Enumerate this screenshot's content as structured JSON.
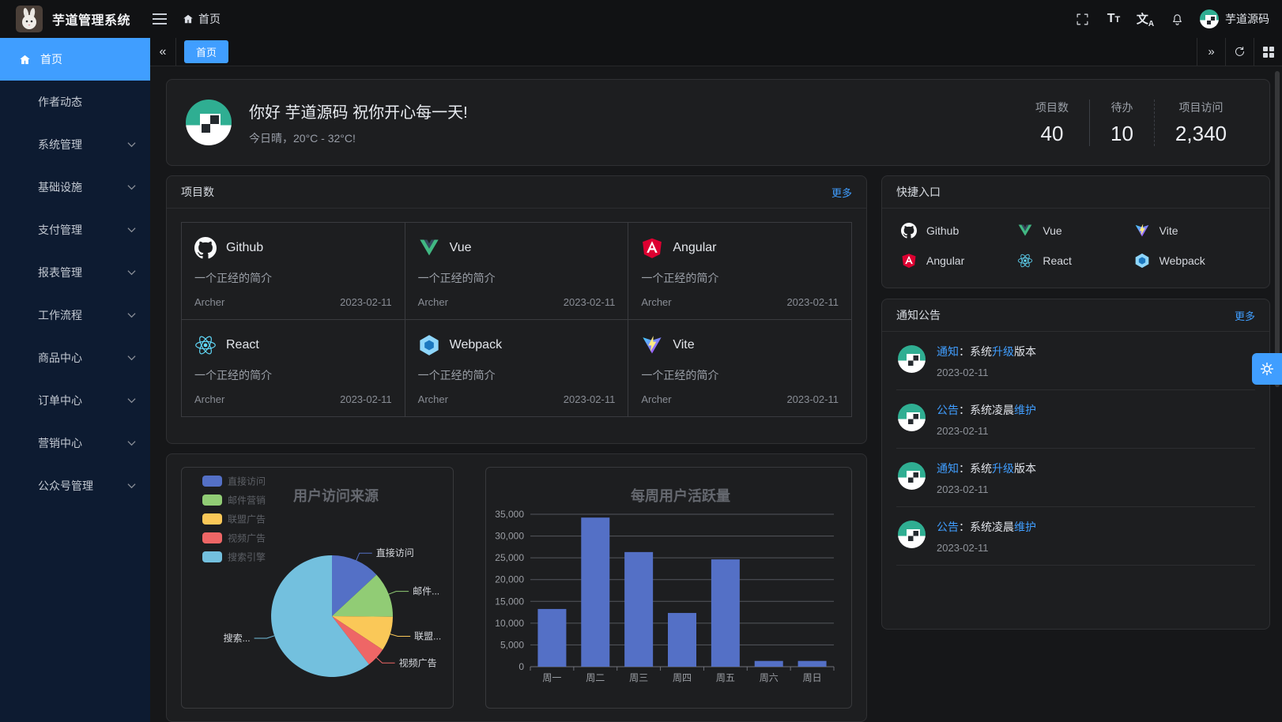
{
  "app": {
    "title": "芋道管理系统"
  },
  "header": {
    "breadcrumb_home": "首页",
    "username": "芋道源码",
    "font_icon_large": "T",
    "font_icon_small": "T",
    "lang_icon_zh": "文",
    "lang_icon_a": "A"
  },
  "tabbar": {
    "collapse_icon": "«",
    "expand_icon": "»",
    "tabs": [
      {
        "label": "首页",
        "active": true
      }
    ]
  },
  "sidebar": {
    "items": [
      {
        "label": "首页",
        "active": true
      },
      {
        "label": "作者动态"
      },
      {
        "label": "系统管理",
        "expandable": true
      },
      {
        "label": "基础设施",
        "expandable": true
      },
      {
        "label": "支付管理",
        "expandable": true
      },
      {
        "label": "报表管理",
        "expandable": true
      },
      {
        "label": "工作流程",
        "expandable": true
      },
      {
        "label": "商品中心",
        "expandable": true
      },
      {
        "label": "订单中心",
        "expandable": true
      },
      {
        "label": "营销中心",
        "expandable": true
      },
      {
        "label": "公众号管理",
        "expandable": true
      }
    ]
  },
  "greeting": {
    "title": "你好 芋道源码 祝你开心每一天!",
    "subtitle": "今日晴，20°C - 32°C!",
    "stats": [
      {
        "label": "项目数",
        "value": "40"
      },
      {
        "label": "待办",
        "value": "10"
      },
      {
        "label": "项目访问",
        "value": "2,340"
      }
    ]
  },
  "projects": {
    "title": "项目数",
    "more": "更多",
    "items": [
      {
        "name": "Github",
        "desc": "一个正经的简介",
        "author": "Archer",
        "date": "2023-02-11"
      },
      {
        "name": "Vue",
        "desc": "一个正经的简介",
        "author": "Archer",
        "date": "2023-02-11"
      },
      {
        "name": "Angular",
        "desc": "一个正经的简介",
        "author": "Archer",
        "date": "2023-02-11"
      },
      {
        "name": "React",
        "desc": "一个正经的简介",
        "author": "Archer",
        "date": "2023-02-11"
      },
      {
        "name": "Webpack",
        "desc": "一个正经的简介",
        "author": "Archer",
        "date": "2023-02-11"
      },
      {
        "name": "Vite",
        "desc": "一个正经的简介",
        "author": "Archer",
        "date": "2023-02-11"
      }
    ]
  },
  "shortcuts": {
    "title": "快捷入口",
    "items": [
      {
        "label": "Github"
      },
      {
        "label": "Vue"
      },
      {
        "label": "Vite"
      },
      {
        "label": "Angular"
      },
      {
        "label": "React"
      },
      {
        "label": "Webpack"
      }
    ]
  },
  "notices": {
    "title": "通知公告",
    "more": "更多",
    "items": [
      {
        "type": "通知",
        "mid": "：系统",
        "hl": "升级",
        "suf": "版本",
        "date": "2023-02-11"
      },
      {
        "type": "公告",
        "mid": "：系统凌晨",
        "hl": "维护",
        "suf": "",
        "date": "2023-02-11"
      },
      {
        "type": "通知",
        "mid": "：系统",
        "hl": "升级",
        "suf": "版本",
        "date": "2023-02-11"
      },
      {
        "type": "公告",
        "mid": "：系统凌晨",
        "hl": "维护",
        "suf": "",
        "date": "2023-02-11"
      }
    ]
  },
  "colors": {
    "primary": "#409eff",
    "sidebar_bg": "#0d1b31",
    "avatar_teal": "#2fae92"
  },
  "chart_data": [
    {
      "type": "pie",
      "title": "用户访问来源",
      "legend": [
        "直接访问",
        "邮件营销",
        "联盟广告",
        "视频广告",
        "搜索引擎"
      ],
      "legend_position": "top-left",
      "series": [
        {
          "name": "直接访问",
          "value": 335
        },
        {
          "name": "邮件营销",
          "value": 310
        },
        {
          "name": "联盟广告",
          "value": 234
        },
        {
          "name": "视频广告",
          "value": 135
        },
        {
          "name": "搜索引擎",
          "value": 1548
        }
      ],
      "display_labels": [
        "直接访问",
        "邮件...",
        "联盟...",
        "视频广告",
        "搜索..."
      ],
      "colors": [
        "#5470c6",
        "#91cc75",
        "#fac858",
        "#ee6666",
        "#73c0de"
      ]
    },
    {
      "type": "bar",
      "title": "每周用户活跃量",
      "categories": [
        "周一",
        "周二",
        "周三",
        "周四",
        "周五",
        "周六",
        "周日"
      ],
      "values": [
        13253,
        34235,
        26321,
        12340,
        24643,
        1322,
        1324
      ],
      "ylim": [
        0,
        35000
      ],
      "ytick_step": 5000,
      "bar_color": "#5470c6",
      "grid": true,
      "legend_position": "none"
    }
  ]
}
